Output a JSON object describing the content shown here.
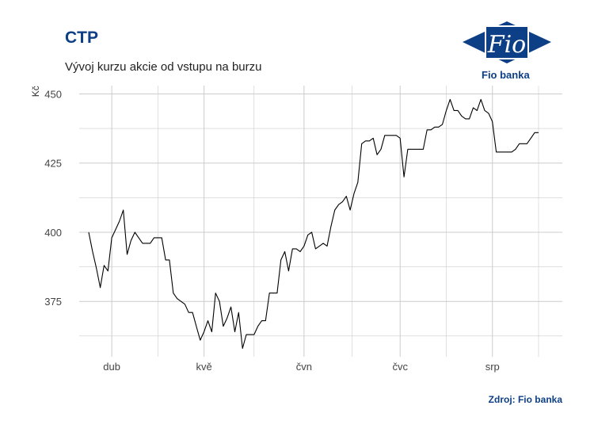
{
  "header": {
    "title": "CTP",
    "subtitle": "Vývoj kurzu akcie od vstupu na burzu"
  },
  "logo": {
    "mark_text": "Fio",
    "caption": "Fio banka",
    "icon": "fio-banka-logo"
  },
  "footer": {
    "source": "Zdroj: Fio banka"
  },
  "colors": {
    "title": "#0d3f86",
    "line": "#000000",
    "grid": "#cccccc"
  },
  "chart_data": {
    "type": "line",
    "title": "CTP",
    "subtitle": "Vývoj kurzu akcie od vstupu na burzu",
    "xlabel": "",
    "ylabel": "Kč",
    "ylim": [
      355,
      453
    ],
    "y_ticks": [
      375,
      400,
      425,
      450
    ],
    "x_tick_labels": [
      "dub",
      "kvě",
      "čvn",
      "čvc",
      "srp"
    ],
    "x_tick_index": [
      6,
      30,
      56,
      81,
      105
    ],
    "grid": true,
    "legend": "none",
    "series": [
      {
        "values": [
          400,
          393,
          387,
          380,
          388,
          386,
          398,
          401,
          404,
          408,
          392,
          397,
          400,
          398,
          396,
          396,
          396,
          398,
          398,
          398,
          390,
          390,
          378,
          376,
          375,
          374,
          371,
          371,
          366,
          361,
          364,
          368,
          364,
          378,
          375,
          366,
          369,
          373,
          364,
          371,
          358,
          363,
          363,
          363,
          366,
          368,
          368,
          378,
          378,
          378,
          390,
          393,
          386,
          394,
          394,
          393,
          395,
          399,
          400,
          394,
          395,
          396,
          395,
          402,
          408,
          410,
          411,
          413,
          408,
          414,
          418,
          432,
          433,
          433,
          434,
          428,
          430,
          435,
          435,
          435,
          435,
          434,
          420,
          430,
          430,
          430,
          430,
          430,
          437,
          437,
          438,
          438,
          439,
          444,
          448,
          444,
          444,
          442,
          441,
          441,
          445,
          444,
          448,
          444,
          443,
          440,
          429,
          429,
          429,
          429,
          429,
          430,
          432,
          432,
          432,
          434,
          436,
          436
        ]
      }
    ]
  }
}
